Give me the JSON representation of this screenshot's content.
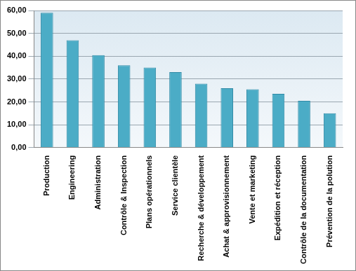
{
  "chart_data": {
    "type": "bar",
    "categories": [
      "Production",
      "Engineering",
      "Administration",
      "Contrôle & Inspection",
      "Plans opérationnels",
      "Service clientèle",
      "Recherche & développement",
      "Achat & approvisionnement",
      "Vente et marketing",
      "Expédition et réception",
      "Contrôle de la documentation",
      "Prévention de la polution"
    ],
    "values": [
      59,
      47,
      40.5,
      36,
      35,
      33,
      28,
      26,
      25.5,
      23.5,
      20.5,
      15
    ],
    "color": "#4bacc6",
    "ylim": [
      0,
      60
    ],
    "yticks": [
      {
        "value": 0,
        "label": "0,00"
      },
      {
        "value": 10,
        "label": "10,00"
      },
      {
        "value": 20,
        "label": "20,00"
      },
      {
        "value": 30,
        "label": "30,00"
      },
      {
        "value": 40,
        "label": "40,00"
      },
      {
        "value": 50,
        "label": "50,00"
      },
      {
        "value": 60,
        "label": "60,00"
      }
    ],
    "grid": true
  }
}
